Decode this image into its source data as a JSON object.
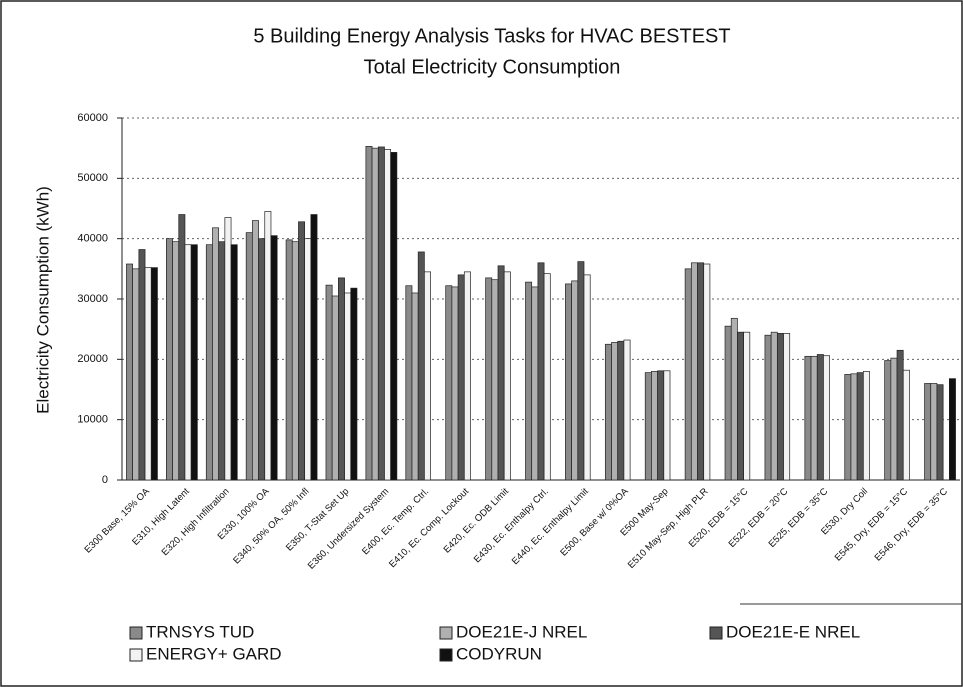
{
  "chart_data": {
    "type": "bar",
    "title": "5 Building Energy Analysis Tasks for HVAC BESTEST",
    "subtitle": "Total Electricity Consumption",
    "y_label": "Electricity Consumption (kWh)",
    "categories": [
      "E300 Base, 15% OA",
      "E310, High Latent",
      "E320, High Infiltration",
      "E330, 100% OA",
      "E340, 50% OA, 50% Infl",
      "E350, T-Stat Set Up",
      "E360, Undersized System",
      "E400, Ec. Temp. Ctrl.",
      "E410, Ec. Comp. Lockout",
      "E420, Ec. ODB Limit",
      "E430, Ec. Enthalpy Ctrl.",
      "E440, Ec. Enthalpy Limit",
      "E500, Base w/ 0%OA",
      "E500 May-Sep",
      "E510 May-Sep, High PLR",
      "E520, EDB = 15°C",
      "E522, EDB = 20°C",
      "E525, EDB = 35°C",
      "E530, Dry Coil",
      "E545, Dry, EDB = 15°C",
      "E546, Dry, EDB = 35°C"
    ],
    "series": [
      {
        "name": "TRNSYS TUD",
        "color": "#8a8a8a",
        "values": [
          35800,
          40000,
          39000,
          41000,
          39800,
          32300,
          55300,
          32200,
          32200,
          33500,
          32800,
          32500,
          22500,
          17800,
          35000,
          25500,
          24000,
          20500,
          17500,
          19800,
          16000
        ]
      },
      {
        "name": "DOE21E-J NREL",
        "color": "#b0b0b0",
        "values": [
          35000,
          39500,
          41800,
          43000,
          39500,
          30500,
          55000,
          31000,
          32000,
          33200,
          32000,
          33000,
          22800,
          18000,
          36000,
          26800,
          24500,
          20500,
          17600,
          20200,
          16000
        ]
      },
      {
        "name": "DOE21E-E NREL",
        "color": "#555555",
        "values": [
          38200,
          44000,
          39500,
          40000,
          42800,
          33500,
          55200,
          37800,
          34000,
          35500,
          36000,
          36200,
          23000,
          18100,
          36000,
          24500,
          24300,
          20800,
          17800,
          21500,
          15800
        ]
      },
      {
        "name": "ENERGY+ GARD",
        "color": "#f2f2f2",
        "values": [
          35200,
          39000,
          43500,
          44500,
          40000,
          31000,
          54800,
          34500,
          34500,
          34500,
          34200,
          34000,
          23200,
          18100,
          35800,
          24500,
          24300,
          20600,
          18000,
          18200,
          null
        ]
      },
      {
        "name": "CODYRUN",
        "color": "#111111",
        "values": [
          35200,
          39000,
          39000,
          40500,
          44000,
          31800,
          54300,
          null,
          null,
          null,
          null,
          null,
          null,
          null,
          null,
          null,
          null,
          null,
          null,
          null,
          16800
        ]
      }
    ],
    "ylim": [
      0,
      60000
    ],
    "yticks": [
      0,
      10000,
      20000,
      30000,
      40000,
      50000,
      60000
    ],
    "grid": true
  }
}
